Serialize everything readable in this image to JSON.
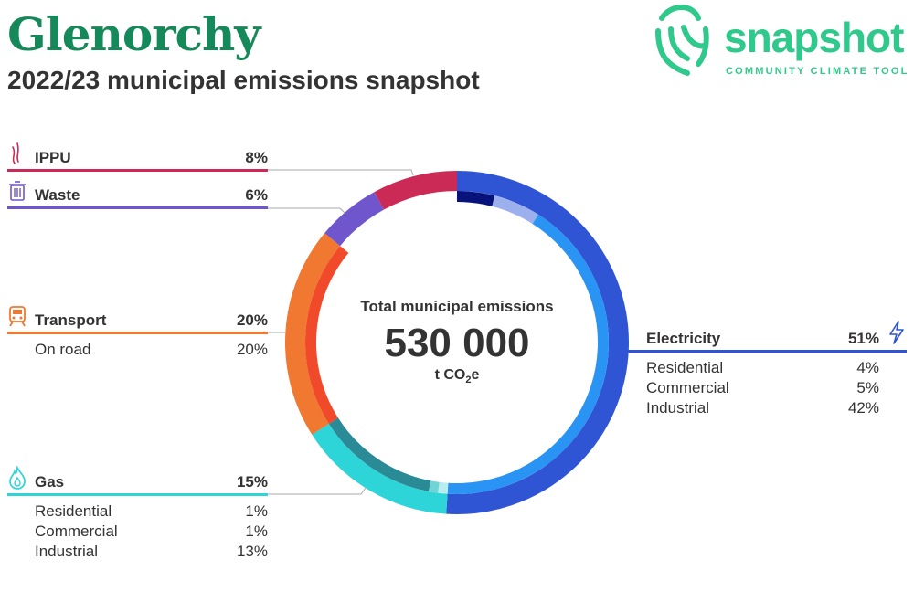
{
  "header": {
    "title": "Glenorchy",
    "subtitle": "2022/23 municipal emissions snapshot"
  },
  "logo": {
    "word": "snapshot",
    "tagline": "COMMUNITY CLIMATE TOOL",
    "color": "#2ec98b"
  },
  "center": {
    "label": "Total municipal emissions",
    "value": "530 000",
    "unit_prefix": "t CO",
    "unit_sub": "2",
    "unit_suffix": "e"
  },
  "categories": {
    "ippu": {
      "label": "IPPU",
      "percent": "8%",
      "color": "#cc2a56",
      "icon": "smoke-icon"
    },
    "waste": {
      "label": "Waste",
      "percent": "6%",
      "color": "#7056cc",
      "icon": "trash-icon"
    },
    "transport": {
      "label": "Transport",
      "percent": "20%",
      "color": "#f07830",
      "icon": "train-icon",
      "subs": [
        {
          "label": "On road",
          "percent": "20%"
        }
      ]
    },
    "gas": {
      "label": "Gas",
      "percent": "15%",
      "color": "#2dd5d8",
      "icon": "flame-icon",
      "subs": [
        {
          "label": "Residential",
          "percent": "1%"
        },
        {
          "label": "Commercial",
          "percent": "1%"
        },
        {
          "label": "Industrial",
          "percent": "13%"
        }
      ]
    },
    "electricity": {
      "label": "Electricity",
      "percent": "51%",
      "color": "#2f55d4",
      "icon": "lightning-icon",
      "subs": [
        {
          "label": "Residential",
          "percent": "4%"
        },
        {
          "label": "Commercial",
          "percent": "5%"
        },
        {
          "label": "Industrial",
          "percent": "42%"
        }
      ]
    }
  },
  "chart_data": {
    "type": "pie",
    "total": 530000,
    "unit": "t CO2e",
    "series": [
      {
        "name": "Electricity",
        "value": 51,
        "color": "#2f55d4",
        "subs": [
          {
            "name": "Residential",
            "value": 4,
            "color": "#07137a"
          },
          {
            "name": "Commercial",
            "value": 5,
            "color": "#9db0ee"
          },
          {
            "name": "Industrial",
            "value": 42,
            "color": "#2a94f4"
          }
        ]
      },
      {
        "name": "Gas",
        "value": 15,
        "color": "#2dd5d8",
        "subs": [
          {
            "name": "Residential",
            "value": 1,
            "color": "#b9eef0"
          },
          {
            "name": "Commercial",
            "value": 1,
            "color": "#6fd3d8"
          },
          {
            "name": "Industrial",
            "value": 13,
            "color": "#2a8a96"
          }
        ]
      },
      {
        "name": "Transport",
        "value": 20,
        "color": "#f07830",
        "subs": [
          {
            "name": "On road",
            "value": 20,
            "color": "#f04a2a"
          }
        ]
      },
      {
        "name": "Waste",
        "value": 6,
        "color": "#7056cc",
        "subs": []
      },
      {
        "name": "IPPU",
        "value": 8,
        "color": "#cc2a56",
        "subs": []
      }
    ]
  }
}
